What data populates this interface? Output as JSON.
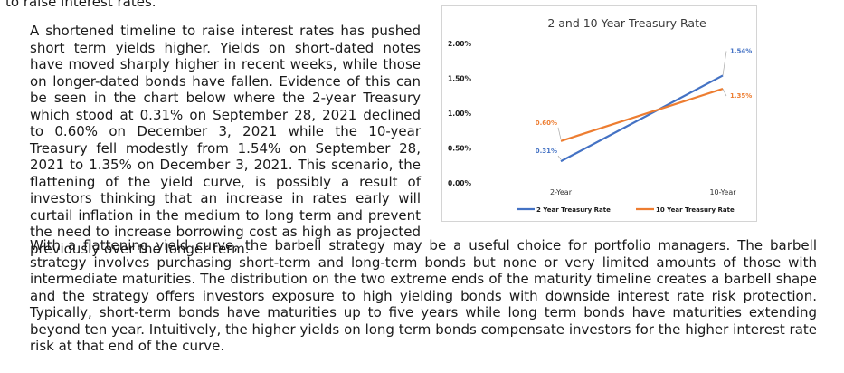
{
  "text": {
    "top_line": "to raise interest rates.",
    "left_paragraph": "A shortened timeline to raise interest rates has pushed short term yields higher. Yields on short-dated notes have moved sharply higher in recent weeks, while those on longer-dated bonds have fallen. Evidence of this can be seen in the chart below where the 2-year Treasury which stood at 0.31% on September 28, 2021 declined to 0.60% on December 3, 2021 while the 10-year Treasury fell modestly from 1.54% on September 28, 2021 to 1.35% on December 3, 2021. This scenario, the flattening of the yield curve, is possibly a result of investors thinking that an increase in rates early will curtail inflation in the medium to long term and prevent the need to increase borrowing cost as high as projected previously over the longer term.",
    "bottom_paragraph": "With a flattening yield curve, the barbell strategy may be a useful choice for portfolio managers. The barbell strategy involves purchasing short-term and long-term bonds but none or very limited amounts of those with intermediate maturities. The distribution on the two extreme ends of the maturity timeline creates a barbell shape and the strategy offers investors exposure to high yielding bonds with downside interest rate risk protection.  Typically, short-term bonds have maturities up to five years while long term bonds have maturities extending beyond ten year. Intuitively, the higher yields on long term bonds compensate investors for the higher interest rate risk at that end of the curve."
  },
  "chart_data": {
    "type": "line",
    "title": "2 and 10 Year Treasury Rate",
    "categories": [
      "2-Year",
      "10-Year"
    ],
    "y_ticks": [
      "0.00%",
      "0.50%",
      "1.00%",
      "1.50%",
      "2.00%"
    ],
    "ylim": [
      0,
      2
    ],
    "grid": false,
    "legend_position": "bottom",
    "series": [
      {
        "name": "2 Year Treasury Rate",
        "color": "#4472c4",
        "values": [
          0.31,
          1.54
        ],
        "labels": [
          "0.31%",
          "1.54%"
        ]
      },
      {
        "name": "10 Year Treasury Rate",
        "color": "#ed7d31",
        "values": [
          0.6,
          1.35
        ],
        "labels": [
          "0.60%",
          "1.35%"
        ]
      }
    ]
  }
}
